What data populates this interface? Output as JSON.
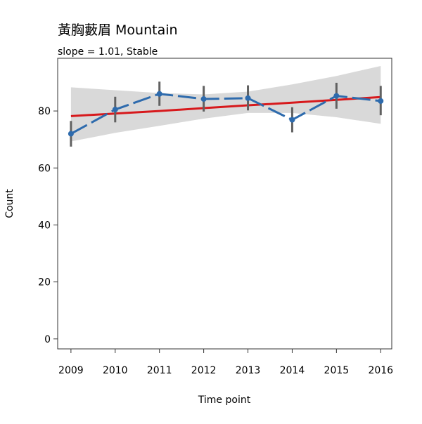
{
  "chart_data": {
    "type": "line",
    "title": "黃胸藪眉 Mountain",
    "subtitle": "slope = 1.01, Stable",
    "xlabel": "Time point",
    "ylabel": "Count",
    "x": [
      2009,
      2010,
      2011,
      2012,
      2013,
      2014,
      2015,
      2016
    ],
    "x_tick_labels": [
      "2009",
      "2010",
      "2011",
      "2012",
      "2013",
      "2014",
      "2015",
      "2016"
    ],
    "y_ticks": [
      0,
      20,
      40,
      60,
      80
    ],
    "y_tick_labels": [
      "0",
      "20",
      "40",
      "60",
      "80"
    ],
    "xlim": [
      2008.7,
      2016.25
    ],
    "ylim": [
      -3.5,
      98.5
    ],
    "grid": false,
    "legend": "none",
    "series": [
      {
        "kind": "observed",
        "values": [
          72.0,
          80.5,
          86.0,
          84.2,
          84.5,
          76.9,
          85.3,
          83.5
        ],
        "error_low": [
          67.5,
          76.0,
          81.8,
          79.8,
          80.2,
          72.5,
          80.8,
          78.5
        ],
        "error_high": [
          76.5,
          85.0,
          90.3,
          88.8,
          89.0,
          81.3,
          89.9,
          88.8
        ],
        "color": "#2E6BAD",
        "line_style": "dashed"
      },
      {
        "kind": "trend",
        "values": [
          78.2,
          79.1,
          80.0,
          81.0,
          82.0,
          82.9,
          83.9,
          84.9
        ],
        "ci_low": [
          69.3,
          72.3,
          74.8,
          77.3,
          79.3,
          79.3,
          77.8,
          75.5
        ],
        "ci_high": [
          88.3,
          87.3,
          86.3,
          85.8,
          86.8,
          89.3,
          92.3,
          95.8
        ],
        "color": "#D7191C",
        "band_color": "#D9D9D9"
      }
    ],
    "error_bar_color": "#616161"
  }
}
